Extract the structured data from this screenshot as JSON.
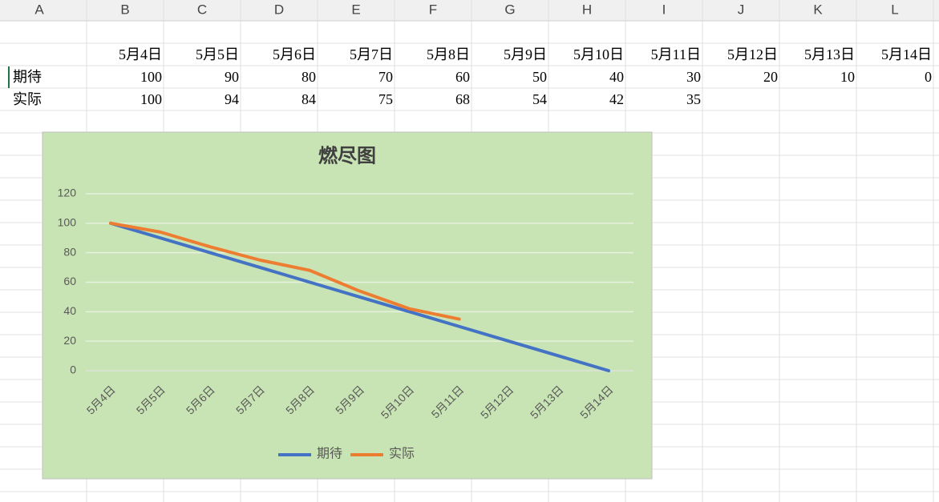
{
  "columns": [
    "A",
    "B",
    "C",
    "D",
    "E",
    "F",
    "G",
    "H",
    "I",
    "J",
    "K",
    "L"
  ],
  "table": {
    "header": [
      "5月4日",
      "5月5日",
      "5月6日",
      "5月7日",
      "5月8日",
      "5月9日",
      "5月10日",
      "5月11日",
      "5月12日",
      "5月13日",
      "5月14日"
    ],
    "rows": [
      [
        "期待",
        100,
        90,
        80,
        70,
        60,
        50,
        40,
        30,
        20,
        10,
        0
      ],
      [
        "实际",
        100,
        94,
        84,
        75,
        68,
        54,
        42,
        35
      ]
    ]
  },
  "chart_data": {
    "type": "line",
    "title": "燃尽图",
    "categories": [
      "5月4日",
      "5月5日",
      "5月6日",
      "5月7日",
      "5月8日",
      "5月9日",
      "5月10日",
      "5月11日",
      "5月12日",
      "5月13日",
      "5月14日"
    ],
    "series": [
      {
        "name": "期待",
        "color": "#4472c4",
        "values": [
          100,
          90,
          80,
          70,
          60,
          50,
          40,
          30,
          20,
          10,
          0
        ]
      },
      {
        "name": "实际",
        "color": "#ed7d31",
        "values": [
          100,
          94,
          84,
          75,
          68,
          54,
          42,
          35,
          null,
          null,
          null
        ]
      }
    ],
    "ylim": [
      0,
      120
    ],
    "yticks": [
      0,
      20,
      40,
      60,
      80,
      100,
      120
    ],
    "grid": true,
    "legend": "bottom"
  }
}
